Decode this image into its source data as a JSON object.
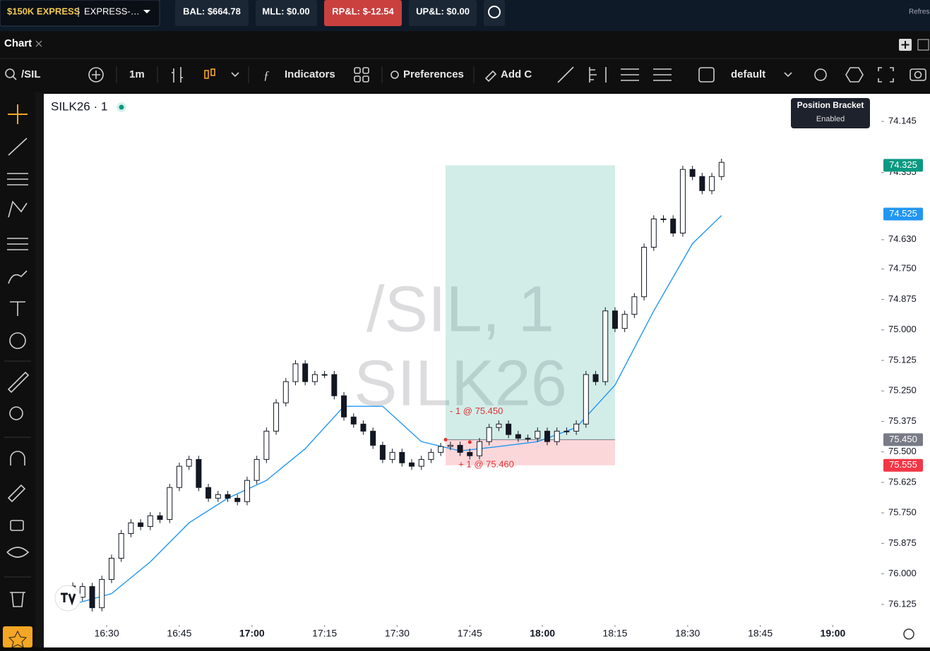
{
  "top_bar": {
    "account": "$150K EXPRESS",
    "account_sub": "EXPRESS-…",
    "balance": "BAL: $664.78",
    "mll": "MLL: $0.00",
    "rpl": "RP&L: $-12.54",
    "upl": "UP&L: $0.00",
    "refresh": "Refresh"
  },
  "tab": {
    "label": "Chart"
  },
  "toolbar": {
    "symbol": "/SIL",
    "interval": "1m",
    "indicators": "Indicators",
    "preferences": "Preferences",
    "add": "Add C",
    "layout": "default"
  },
  "tooltip": {
    "title": "Position Bracket",
    "status": "Enabled"
  },
  "chart_data": {
    "type": "candlestick",
    "title": "SILK26 · 1",
    "watermark": [
      "/SIL, 1",
      "SILK26"
    ],
    "inverted": true,
    "grid": false,
    "up_color": "#ffffff",
    "down_color": "#131722",
    "ylim": [
      74.032,
      76.192
    ],
    "yticks": [
      74.145,
      74.355,
      {
        "value": 74.63,
        "label": "74.630"
      },
      {
        "value": 74.75,
        "label": "74.750"
      },
      74.875,
      {
        "value": 75.0,
        "label": "75.000"
      },
      75.125,
      {
        "value": 75.25,
        "label": "75.250"
      },
      75.375,
      {
        "value": 75.5,
        "label": "75.500"
      },
      75.625,
      {
        "value": 75.75,
        "label": "75.750"
      },
      75.875,
      {
        "value": 76.0,
        "label": "76.000"
      },
      76.125
    ],
    "xlim": [
      "16:17",
      "19:10"
    ],
    "xticks": [
      "16:30",
      "16:45",
      "17:00",
      "17:15",
      "17:30",
      "17:45",
      "18:00",
      "18:15",
      "18:30",
      "18:45",
      "19:00"
    ],
    "times": [
      "16:23",
      "16:25",
      "16:27",
      "16:29",
      "16:31",
      "16:33",
      "16:35",
      "16:37",
      "16:39",
      "16:41",
      "16:43",
      "16:45",
      "16:47",
      "16:49",
      "16:51",
      "16:53",
      "16:55",
      "16:57",
      "16:59",
      "17:01",
      "17:03",
      "17:05",
      "17:07",
      "17:09",
      "17:11",
      "17:13",
      "17:15",
      "17:17",
      "17:19",
      "17:21",
      "17:23",
      "17:25",
      "17:27",
      "17:29",
      "17:31",
      "17:33",
      "17:35",
      "17:37",
      "17:39",
      "17:41",
      "17:43",
      "17:45",
      "17:47",
      "17:49",
      "17:51",
      "17:53",
      "17:55",
      "17:57",
      "17:59",
      "18:01",
      "18:03",
      "18:05",
      "18:07",
      "18:09",
      "18:11",
      "18:13",
      "18:15",
      "18:17",
      "18:19",
      "18:21",
      "18:23",
      "18:25",
      "18:27",
      "18:29",
      "18:31",
      "18:33",
      "18:35",
      "18:37"
    ],
    "open": [
      76.05,
      76.096,
      76.052,
      76.139,
      76.023,
      75.936,
      75.835,
      75.791,
      75.806,
      75.762,
      75.777,
      75.646,
      75.559,
      75.531,
      75.646,
      75.69,
      75.675,
      75.69,
      75.704,
      75.617,
      75.531,
      75.415,
      75.299,
      75.212,
      75.139,
      75.212,
      75.183,
      75.183,
      75.27,
      75.357,
      75.386,
      75.415,
      75.473,
      75.531,
      75.502,
      75.545,
      75.559,
      75.531,
      75.502,
      75.478,
      75.473,
      75.502,
      75.516,
      75.458,
      75.4,
      75.386,
      75.429,
      75.444,
      75.444,
      75.415,
      75.458,
      75.415,
      75.415,
      75.386,
      75.183,
      75.212,
      74.922,
      74.994,
      74.936,
      74.864,
      74.661,
      74.545,
      74.545,
      74.603,
      74.342,
      74.371,
      74.429,
      74.371
    ],
    "close": [
      76.096,
      76.052,
      76.139,
      76.023,
      75.936,
      75.835,
      75.791,
      75.806,
      75.762,
      75.777,
      75.646,
      75.559,
      75.531,
      75.646,
      75.69,
      75.675,
      75.69,
      75.704,
      75.617,
      75.531,
      75.415,
      75.299,
      75.212,
      75.139,
      75.212,
      75.183,
      75.183,
      75.27,
      75.357,
      75.386,
      75.415,
      75.473,
      75.531,
      75.502,
      75.545,
      75.559,
      75.531,
      75.502,
      75.478,
      75.473,
      75.502,
      75.516,
      75.458,
      75.4,
      75.386,
      75.429,
      75.444,
      75.444,
      75.415,
      75.458,
      75.415,
      75.415,
      75.386,
      75.183,
      75.212,
      74.922,
      74.994,
      74.936,
      74.864,
      74.661,
      74.545,
      74.545,
      74.603,
      74.342,
      74.371,
      74.429,
      74.371,
      74.313
    ],
    "low": [
      76.035,
      76.037,
      76.037,
      76.008,
      75.921,
      75.82,
      75.776,
      75.776,
      75.747,
      75.747,
      75.631,
      75.544,
      75.516,
      75.516,
      75.631,
      75.66,
      75.66,
      75.675,
      75.602,
      75.516,
      75.4,
      75.284,
      75.197,
      75.124,
      75.124,
      75.168,
      75.168,
      75.168,
      75.255,
      75.342,
      75.371,
      75.4,
      75.458,
      75.487,
      75.487,
      75.53,
      75.516,
      75.487,
      75.463,
      75.458,
      75.458,
      75.487,
      75.443,
      75.385,
      75.371,
      75.371,
      75.414,
      75.429,
      75.4,
      75.4,
      75.4,
      75.4,
      75.371,
      75.168,
      75.168,
      74.907,
      74.907,
      74.921,
      74.849,
      74.646,
      74.53,
      74.53,
      74.53,
      74.327,
      74.327,
      74.356,
      74.356,
      74.298
    ],
    "high": [
      76.111,
      76.111,
      76.154,
      76.154,
      76.038,
      75.951,
      75.85,
      75.821,
      75.821,
      75.792,
      75.792,
      75.661,
      75.574,
      75.661,
      75.705,
      75.705,
      75.705,
      75.719,
      75.719,
      75.632,
      75.546,
      75.43,
      75.314,
      75.227,
      75.227,
      75.227,
      75.198,
      75.285,
      75.372,
      75.401,
      75.43,
      75.488,
      75.546,
      75.546,
      75.56,
      75.574,
      75.574,
      75.546,
      75.517,
      75.493,
      75.517,
      75.531,
      75.531,
      75.473,
      75.415,
      75.444,
      75.459,
      75.459,
      75.459,
      75.473,
      75.473,
      75.43,
      75.43,
      75.401,
      75.227,
      75.227,
      75.009,
      75.009,
      74.951,
      74.879,
      74.676,
      74.56,
      74.618,
      74.618,
      74.386,
      74.444,
      74.444,
      74.386
    ],
    "ma": {
      "color": "#2196f3",
      "times": [
        "16:23",
        "16:31",
        "16:39",
        "16:47",
        "16:55",
        "17:03",
        "17:11",
        "17:19",
        "17:27",
        "17:35",
        "17:43",
        "17:51",
        "17:59",
        "18:07",
        "18:15",
        "18:23",
        "18:31",
        "18:37"
      ],
      "values": [
        76.125,
        76.081,
        75.951,
        75.791,
        75.69,
        75.617,
        75.487,
        75.313,
        75.313,
        75.458,
        75.496,
        75.478,
        75.458,
        75.4,
        75.226,
        74.922,
        74.646,
        74.531
      ]
    },
    "position": {
      "start": "17:40",
      "end": "18:15",
      "target": {
        "value": 74.325,
        "label": "74.325",
        "color": "#089981"
      },
      "entry": {
        "value": 75.45,
        "label": "75.450",
        "color": "#787b86"
      },
      "stop": {
        "value": 75.555,
        "label": "75.555",
        "color": "#f23645"
      }
    },
    "last_price": {
      "value": 74.525,
      "label": "74.525",
      "color": "#2196f3"
    },
    "trades": [
      {
        "label": "- 1 @ 75.450",
        "price": 75.45,
        "time": "17:40"
      },
      {
        "label": "+ 1 @ 75.460",
        "price": 75.46,
        "time": "17:45"
      }
    ]
  }
}
